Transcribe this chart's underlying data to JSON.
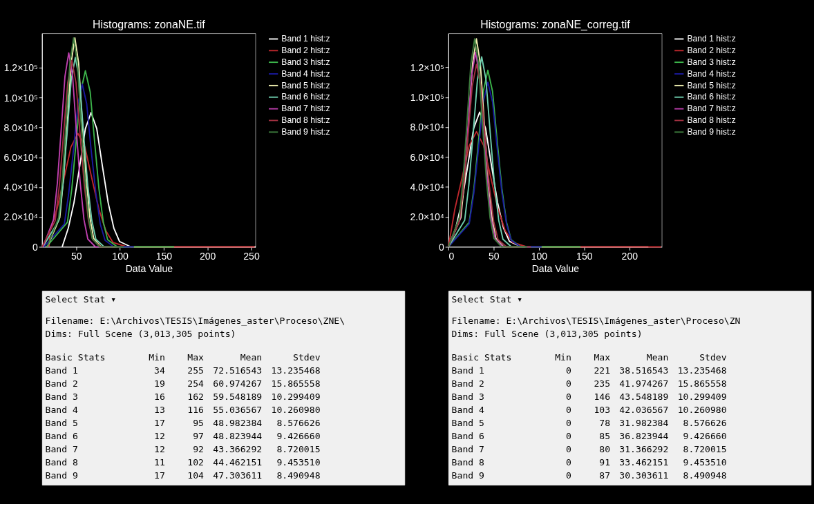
{
  "chart_data": [
    {
      "type": "line",
      "title": "Histograms: zonaNE.tif",
      "xlabel": "Data Value",
      "xlim": [
        11,
        255
      ],
      "xticks": [
        50,
        100,
        150,
        200,
        250
      ],
      "ylim": [
        0,
        143000
      ],
      "yticks": [
        0,
        {
          "value": 20000,
          "label": "2.0×10⁴"
        },
        {
          "value": 40000,
          "label": "4.0×10⁴"
        },
        {
          "value": 60000,
          "label": "6.0×10⁴"
        },
        {
          "value": 80000,
          "label": "8.0×10⁴"
        },
        {
          "value": 100000,
          "label": "1.0×10⁵"
        },
        {
          "value": 120000,
          "label": "1.2×10⁵"
        }
      ],
      "grid": false,
      "legend": "right",
      "series": [
        {
          "name": "Band 1 hist:z",
          "color": "#ffffff",
          "x": [
            34,
            41,
            47.5,
            54,
            60.5,
            67,
            73.5,
            80,
            86.5,
            93,
            99.5,
            112.5,
            255
          ],
          "values": [
            0,
            12600,
            29700,
            54000,
            79200,
            90000,
            79200,
            54000,
            29700,
            12600,
            3600,
            0,
            0
          ]
        },
        {
          "name": "Band 2 hist:z",
          "color": "#c0282d",
          "x": [
            19,
            20,
            28,
            36,
            44,
            52,
            60,
            68,
            76,
            84,
            92,
            108,
            254
          ],
          "values": [
            0,
            10600,
            25100,
            45600,
            66900,
            76000,
            66900,
            45600,
            25100,
            10600,
            3000,
            0,
            0
          ]
        },
        {
          "name": "Band 3 hist:z",
          "color": "#3cb44b",
          "x": [
            16,
            40,
            45,
            50,
            55,
            60.5,
            66,
            71,
            76,
            81,
            86,
            97,
            162
          ],
          "values": [
            0,
            16500,
            38900,
            70800,
            103800,
            118000,
            103800,
            70800,
            38900,
            16500,
            4700,
            0,
            0
          ]
        },
        {
          "name": "Band 4 hist:z",
          "color": "#1a1aa0",
          "x": [
            13,
            36.5,
            41.5,
            47,
            52,
            57,
            62,
            67,
            72.5,
            77.5,
            83,
            93,
            116
          ],
          "values": [
            0,
            15300,
            36000,
            65400,
            95900,
            109000,
            95900,
            65400,
            36000,
            15300,
            4400,
            0,
            0
          ]
        },
        {
          "name": "Band 5 hist:z",
          "color": "#f0f0b0",
          "x": [
            17,
            31.3,
            35.6,
            40,
            44.2,
            48.5,
            52.8,
            57,
            61.4,
            65.7,
            70,
            78.6,
            95
          ],
          "values": [
            0,
            19600,
            46200,
            84000,
            123200,
            140000,
            123200,
            84000,
            46200,
            19600,
            5600,
            0,
            0
          ]
        },
        {
          "name": "Band 6 hist:z",
          "color": "#70d0b0",
          "x": [
            12,
            30.2,
            34.9,
            39.6,
            44.3,
            49,
            53.7,
            58.4,
            63.1,
            67.8,
            72.5,
            81.9,
            97
          ],
          "values": [
            0,
            17800,
            41900,
            76200,
            111800,
            127000,
            111800,
            76200,
            41900,
            17800,
            5100,
            0,
            0
          ]
        },
        {
          "name": "Band 7 hist:z",
          "color": "#c040b0",
          "x": [
            12,
            24.1,
            28.5,
            32.8,
            37.2,
            41.5,
            45.9,
            50.2,
            54.6,
            58.9,
            63.3,
            72,
            92
          ],
          "values": [
            0,
            18200,
            42900,
            78000,
            114400,
            130000,
            114400,
            78000,
            42900,
            18200,
            5200,
            0,
            0
          ]
        },
        {
          "name": "Band 8 hist:z",
          "color": "#a03040",
          "x": [
            11,
            26,
            30.8,
            35.5,
            40.3,
            45,
            49.8,
            54.5,
            59.3,
            64,
            68.8,
            78.3,
            102
          ],
          "values": [
            0,
            17500,
            41300,
            75000,
            110000,
            125000,
            110000,
            75000,
            41300,
            17500,
            5000,
            0,
            0
          ]
        },
        {
          "name": "Band 9 hist:z",
          "color": "#3c7a3c",
          "x": [
            17,
            30,
            34.3,
            38.5,
            42.8,
            47,
            51.3,
            55.5,
            59.8,
            64,
            68.3,
            76.8,
            104
          ],
          "values": [
            0,
            19600,
            46200,
            84000,
            123200,
            140000,
            123200,
            84000,
            46200,
            19600,
            5600,
            0,
            0
          ]
        }
      ],
      "annotations": [
        "Select Stat ▾",
        "Filename: E:\\Archivos\\TESIS\\Imágenes_aster\\Proceso\\ZNE\\",
        "Dims: Full Scene (3,013,305 points)",
        "Basic Stats  Min  Max  Mean  Stdev",
        "Band 1  34  255  72.516543  13.235468",
        "Band 2  19  254  60.974267  15.865558",
        "Band 3  16  162  59.548189  10.299409",
        "Band 4  13  116  55.036567  10.260980",
        "Band 5  17  95  48.982384  8.576626",
        "Band 6  12  97  48.823944  9.426660",
        "Band 7  12  92  43.366292  8.720015",
        "Band 8  11  102  44.462151  9.453510",
        "Band 9  17  104  47.303611  8.490948"
      ]
    },
    {
      "type": "line",
      "title": "Histograms: zonaNE_correg.tif",
      "xlabel": "Data Value",
      "xlim": [
        0,
        236
      ],
      "xticks": [
        0,
        50,
        100,
        150,
        200
      ],
      "ylim": [
        0,
        142600
      ],
      "yticks": [
        0,
        {
          "value": 20000,
          "label": "2.0×10⁴"
        },
        {
          "value": 40000,
          "label": "4.0×10⁴"
        },
        {
          "value": 60000,
          "label": "6.0×10⁴"
        },
        {
          "value": 80000,
          "label": "8.0×10⁴"
        },
        {
          "value": 100000,
          "label": "1.0×10⁵"
        },
        {
          "value": 120000,
          "label": "1.2×10⁵"
        }
      ],
      "grid": false,
      "legend": "right",
      "series": [
        {
          "name": "Band 1 hist:z",
          "color": "#ffffff",
          "x": [
            0,
            8.1,
            14.7,
            21.3,
            27.9,
            34.5,
            41.1,
            47.7,
            54.3,
            60.9,
            67.5,
            80.7,
            221
          ],
          "values": [
            0,
            12600,
            29700,
            54000,
            79200,
            90000,
            79200,
            54000,
            29700,
            12600,
            3600,
            0,
            0
          ]
        },
        {
          "name": "Band 2 hist:z",
          "color": "#c0282d",
          "x": [
            0,
            7.2,
            15.1,
            23.1,
            31,
            38.9,
            46.9,
            54.8,
            62.8,
            70.7,
            86.6,
            235
          ],
          "values": [
            0,
            25400,
            46200,
            67800,
            77000,
            67800,
            46200,
            25400,
            10800,
            3100,
            0,
            0
          ]
        },
        {
          "name": "Band 3 hist:z",
          "color": "#3cb44b",
          "x": [
            0,
            23,
            28.2,
            33.3,
            38.5,
            43.6,
            48.8,
            53.9,
            59.1,
            64.2,
            69.4,
            79.7,
            146
          ],
          "values": [
            0,
            16500,
            38900,
            70800,
            103800,
            118000,
            103800,
            70800,
            38900,
            16500,
            4700,
            0,
            0
          ]
        },
        {
          "name": "Band 4 hist:z",
          "color": "#1a1aa0",
          "x": [
            0,
            23,
            28.2,
            33.3,
            38.5,
            43.6,
            48.8,
            53.9,
            59.1,
            64.2,
            69.4,
            79.7,
            103
          ],
          "values": [
            0,
            15400,
            36300,
            66000,
            96800,
            110000,
            96800,
            66000,
            36300,
            15400,
            4400,
            0,
            0
          ]
        },
        {
          "name": "Band 5 hist:z",
          "color": "#f0f0b0",
          "x": [
            0,
            13.8,
            18.1,
            22.4,
            26.7,
            31,
            35.3,
            39.6,
            43.9,
            48.2,
            52.5,
            61.1,
            78
          ],
          "values": [
            0,
            19500,
            45900,
            83400,
            122300,
            139000,
            122300,
            83400,
            45900,
            19500,
            5600,
            0,
            0
          ]
        },
        {
          "name": "Band 6 hist:z",
          "color": "#70d0b0",
          "x": [
            0,
            18,
            22.7,
            27.4,
            32.1,
            36.8,
            41.5,
            46.2,
            50.9,
            55.6,
            60.3,
            69.7,
            85
          ],
          "values": [
            0,
            17800,
            41900,
            76200,
            111800,
            127000,
            111800,
            76200,
            41900,
            17800,
            5100,
            0,
            0
          ]
        },
        {
          "name": "Band 7 hist:z",
          "color": "#c040b0",
          "x": [
            0,
            12.6,
            17,
            21.3,
            25.7,
            30,
            34.4,
            38.7,
            43.1,
            47.4,
            51.8,
            60.5,
            80
          ],
          "values": [
            0,
            18200,
            42900,
            78000,
            114400,
            130000,
            114400,
            78000,
            42900,
            18200,
            5200,
            0,
            0
          ]
        },
        {
          "name": "Band 8 hist:z",
          "color": "#a03040",
          "x": [
            0,
            12,
            16.8,
            21.5,
            26.3,
            31,
            35.8,
            40.5,
            45.3,
            50,
            54.8,
            64.3,
            91
          ],
          "values": [
            0,
            17100,
            40300,
            73200,
            107400,
            122000,
            107400,
            73200,
            40300,
            17100,
            4900,
            0,
            0
          ]
        },
        {
          "name": "Band 9 hist:z",
          "color": "#3c7a3c",
          "x": [
            0,
            12,
            16.3,
            20.5,
            24.8,
            29,
            33.3,
            37.5,
            41.8,
            46,
            50.3,
            58.8,
            87
          ],
          "values": [
            0,
            19500,
            45900,
            83400,
            122300,
            139000,
            122300,
            83400,
            45900,
            19500,
            5600,
            0,
            0
          ]
        }
      ],
      "annotations": [
        "Select Stat ▾",
        "Filename: E:\\Archivos\\TESIS\\Imágenes_aster\\Proceso\\ZN",
        "Dims: Full Scene (3,013,305 points)",
        "Basic Stats  Min  Max  Mean  Stdev",
        "Band 1  0  221  38.516543  13.235468",
        "Band 2  0  235  41.974267  15.865558",
        "Band 3  0  146  43.548189  10.299409",
        "Band 4  0  103  42.036567  10.260980",
        "Band 5  0  78  31.982384  8.576626",
        "Band 6  0  85  36.823944  9.426660",
        "Band 7  0  80  31.366292  8.720015",
        "Band 8  0  91  33.462151  9.453510",
        "Band 9  0  87  30.303611  8.490948"
      ]
    }
  ]
}
